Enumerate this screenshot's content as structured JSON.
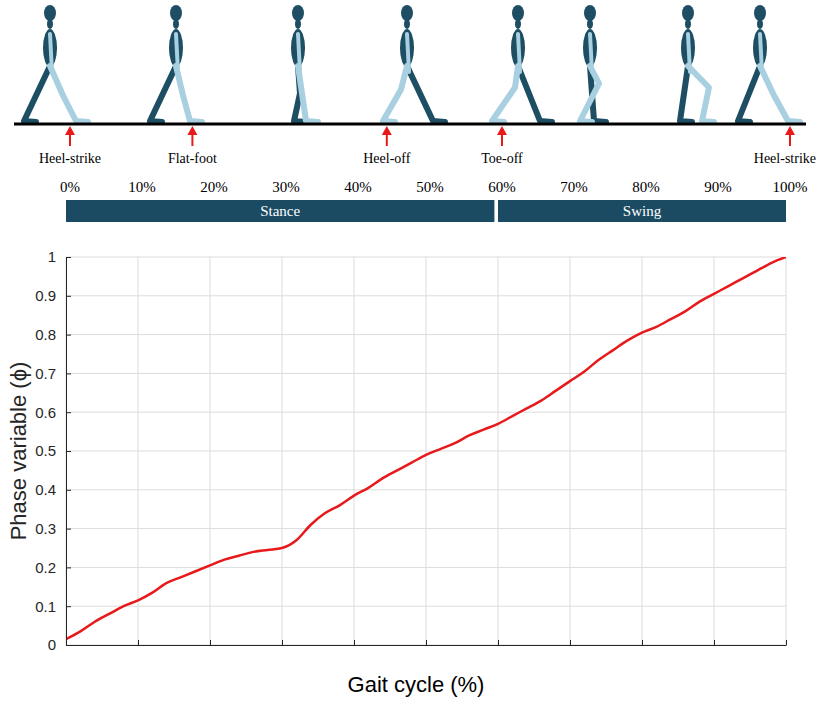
{
  "chart_data": {
    "type": "line",
    "x_label": "Gait cycle (%)",
    "y_label": "Phase variable (ϕ)",
    "x": [
      0,
      2,
      4,
      6,
      8,
      10,
      12,
      14,
      16,
      18,
      20,
      22,
      24,
      26,
      28,
      30,
      32,
      34,
      36,
      38,
      40,
      42,
      44,
      46,
      48,
      50,
      52,
      54,
      56,
      58,
      60,
      62,
      64,
      66,
      68,
      70,
      72,
      74,
      76,
      78,
      80,
      82,
      84,
      86,
      88,
      90,
      92,
      94,
      96,
      98,
      100
    ],
    "values": [
      0.015,
      0.035,
      0.06,
      0.08,
      0.1,
      0.115,
      0.135,
      0.16,
      0.175,
      0.19,
      0.205,
      0.22,
      0.23,
      0.24,
      0.245,
      0.25,
      0.27,
      0.31,
      0.34,
      0.36,
      0.385,
      0.405,
      0.43,
      0.45,
      0.47,
      0.49,
      0.505,
      0.52,
      0.54,
      0.555,
      0.57,
      0.59,
      0.61,
      0.63,
      0.655,
      0.68,
      0.705,
      0.735,
      0.76,
      0.785,
      0.805,
      0.82,
      0.84,
      0.86,
      0.885,
      0.905,
      0.925,
      0.945,
      0.965,
      0.985,
      1.0
    ],
    "color": "#e8191b",
    "xlim": [
      0,
      100
    ],
    "xticks": [
      {
        "value": 0,
        "label": "0%"
      },
      {
        "value": 10,
        "label": "10%"
      },
      {
        "value": 20,
        "label": "20%"
      },
      {
        "value": 30,
        "label": "30%"
      },
      {
        "value": 40,
        "label": "40%"
      },
      {
        "value": 50,
        "label": "50%"
      },
      {
        "value": 60,
        "label": "60%"
      },
      {
        "value": 70,
        "label": "70%"
      },
      {
        "value": 80,
        "label": "80%"
      },
      {
        "value": 90,
        "label": "90%"
      },
      {
        "value": 100,
        "label": "100%"
      }
    ],
    "ylim": [
      0,
      1
    ],
    "yticks": [
      0,
      0.1,
      0.2,
      0.3,
      0.4,
      0.5,
      0.6,
      0.7,
      0.8,
      0.9,
      1
    ],
    "grid": true,
    "events": [
      {
        "label": "Heel-strike",
        "x": 0
      },
      {
        "label": "Flat-foot",
        "x": 17
      },
      {
        "label": "Heel-off",
        "x": 44
      },
      {
        "label": "Toe-off",
        "x": 60
      },
      {
        "label": "Heel-strike",
        "x": 100
      }
    ],
    "phases": [
      {
        "label": "Stance",
        "start": 0,
        "end": 59.5
      },
      {
        "label": "Swing",
        "start": 60,
        "end": 100
      }
    ]
  }
}
